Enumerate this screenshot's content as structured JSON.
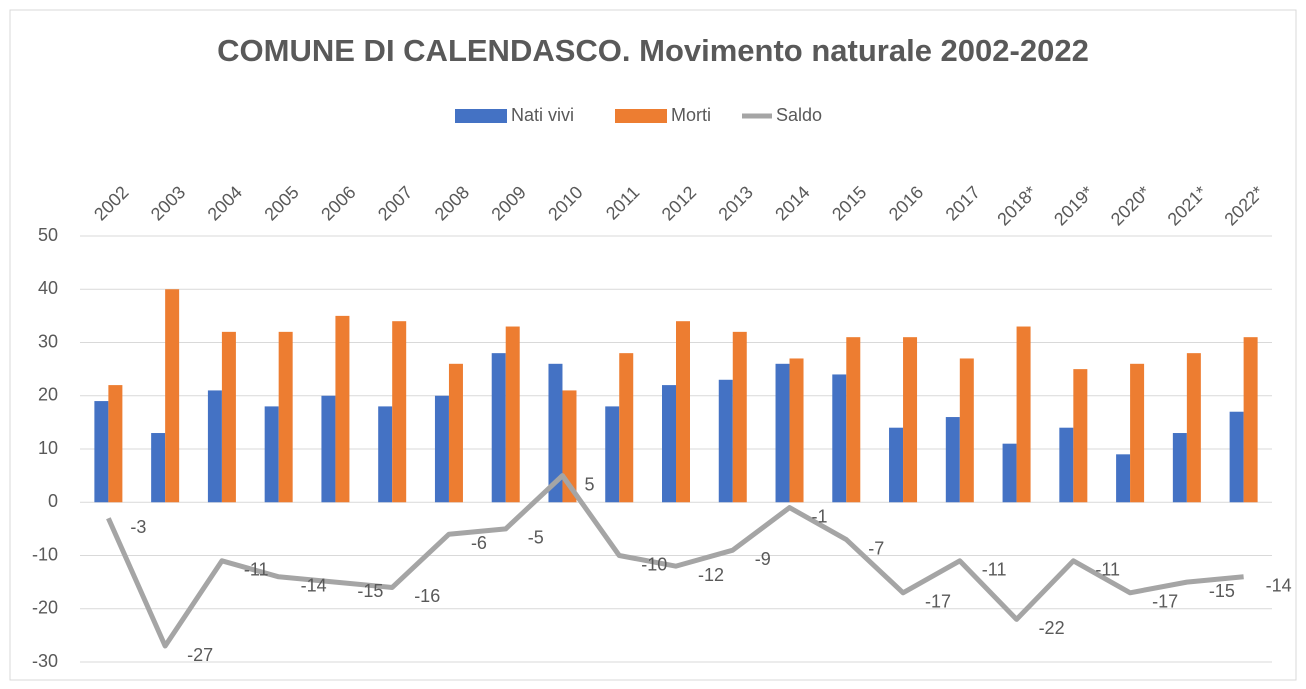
{
  "chart_data": {
    "type": "bar_line",
    "title": "COMUNE DI CALENDASCO. Movimento naturale 2002-2022",
    "categories": [
      "2002",
      "2003",
      "2004",
      "2005",
      "2006",
      "2007",
      "2008",
      "2009",
      "2010",
      "2011",
      "2012",
      "2013",
      "2014",
      "2015",
      "2016",
      "2017",
      "2018*",
      "2019*",
      "2020*",
      "2021*",
      "2022*"
    ],
    "series": [
      {
        "name": "Nati vivi",
        "type": "bar",
        "color": "#4472c4",
        "values": [
          19,
          13,
          21,
          18,
          20,
          18,
          20,
          28,
          26,
          18,
          22,
          23,
          26,
          24,
          14,
          16,
          11,
          14,
          9,
          13,
          17
        ]
      },
      {
        "name": "Morti",
        "type": "bar",
        "color": "#ed7d31",
        "values": [
          22,
          40,
          32,
          32,
          35,
          34,
          26,
          33,
          21,
          28,
          34,
          32,
          27,
          31,
          31,
          27,
          33,
          25,
          26,
          28,
          31
        ]
      },
      {
        "name": "Saldo",
        "type": "line",
        "color": "#a5a5a5",
        "values": [
          -3,
          -27,
          -11,
          -14,
          -15,
          -16,
          -6,
          -5,
          5,
          -10,
          -12,
          -9,
          -1,
          -7,
          -17,
          -11,
          -22,
          -11,
          -17,
          -15,
          -14
        ]
      }
    ],
    "ylim": [
      -30,
      50
    ],
    "yticks": [
      -30,
      -20,
      -10,
      0,
      10,
      20,
      30,
      40,
      50
    ],
    "grid": true,
    "legend": "top"
  }
}
